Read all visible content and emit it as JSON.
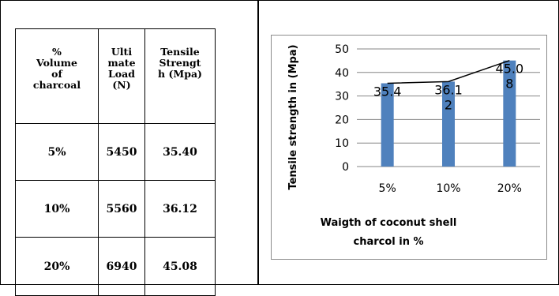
{
  "table": {
    "headers": [
      [
        "%",
        "Volume",
        "of",
        "charcoal"
      ],
      [
        "Ulti",
        "mate",
        "Load",
        "(N)"
      ],
      [
        "Tensile",
        "Strengt",
        "h (Mpa)"
      ]
    ],
    "rows": [
      [
        "5%",
        "5450",
        "35.40"
      ],
      [
        "10%",
        "5560",
        "36.12"
      ],
      [
        "20%",
        "6940",
        "45.08"
      ]
    ]
  },
  "chart_data": {
    "type": "bar",
    "categories": [
      "5%",
      "10%",
      "20%"
    ],
    "values": [
      35.4,
      36.12,
      45.08
    ],
    "data_labels": [
      [
        "35.4"
      ],
      [
        "36.1",
        "2"
      ],
      [
        "45.0",
        "8"
      ]
    ],
    "ylabel": "Tensile strength in (Mpa)",
    "xlabel": [
      "Waigth of coconut shell",
      "charcol in %"
    ],
    "ylim": [
      0,
      50
    ],
    "yticks": [
      "0",
      "10",
      "20",
      "30",
      "40",
      "50"
    ],
    "grid": true,
    "overlay_line": true,
    "bar_color": "#4f81bd",
    "line_color": "#000000",
    "grid_color": "#868686"
  }
}
